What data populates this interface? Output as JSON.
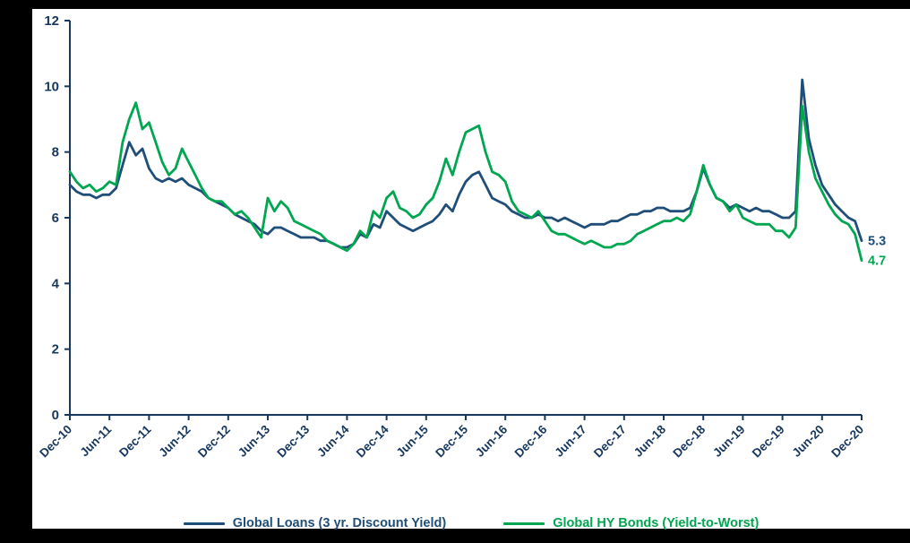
{
  "colors": {
    "background": "#000000",
    "panel": "#FFFFFF",
    "axis": "#17375E",
    "loans_line": "#1F4E79",
    "bonds_line": "#00A650"
  },
  "legend": {
    "items": [
      {
        "label": "Global Loans (3 yr. Discount Yield)",
        "color": "#1F4E79"
      },
      {
        "label": "Global HY Bonds (Yield-to-Worst)",
        "color": "#00A650"
      }
    ]
  },
  "chart_data": {
    "type": "line",
    "title": "",
    "axis_color": "#17375E",
    "ylim": [
      0,
      12
    ],
    "y_ticks": [
      0,
      2,
      4,
      6,
      8,
      10,
      12
    ],
    "months_per_tick": 6,
    "x_tick_labels": [
      "Dec-10",
      "Jun-11",
      "Dec-11",
      "Jun-12",
      "Dec-12",
      "Jun-13",
      "Dec-13",
      "Jun-14",
      "Dec-14",
      "Jun-15",
      "Dec-15",
      "Jun-16",
      "Dec-16",
      "Jun-17",
      "Dec-17",
      "Jun-18",
      "Dec-18",
      "Jun-19",
      "Dec-19",
      "Jun-20",
      "Dec-20"
    ],
    "x_start": "Dec-10",
    "x_end": "Dec-20",
    "series": [
      {
        "name": "Global Loans (3 yr. Discount Yield)",
        "color": "#1F4E79",
        "values": [
          7.0,
          6.8,
          6.7,
          6.7,
          6.6,
          6.7,
          6.7,
          6.9,
          7.6,
          8.3,
          7.9,
          8.1,
          7.5,
          7.2,
          7.1,
          7.2,
          7.1,
          7.2,
          7.0,
          6.9,
          6.8,
          6.6,
          6.5,
          6.4,
          6.3,
          6.1,
          6.0,
          5.9,
          5.8,
          5.6,
          5.5,
          5.7,
          5.7,
          5.6,
          5.5,
          5.4,
          5.4,
          5.4,
          5.3,
          5.3,
          5.2,
          5.1,
          5.1,
          5.2,
          5.5,
          5.4,
          5.8,
          5.7,
          6.2,
          6.0,
          5.8,
          5.7,
          5.6,
          5.7,
          5.8,
          5.9,
          6.1,
          6.4,
          6.2,
          6.7,
          7.1,
          7.3,
          7.4,
          7.0,
          6.6,
          6.5,
          6.4,
          6.2,
          6.1,
          6.0,
          6.0,
          6.1,
          6.0,
          6.0,
          5.9,
          6.0,
          5.9,
          5.8,
          5.7,
          5.8,
          5.8,
          5.8,
          5.9,
          5.9,
          6.0,
          6.1,
          6.1,
          6.2,
          6.2,
          6.3,
          6.3,
          6.2,
          6.2,
          6.2,
          6.3,
          6.8,
          7.5,
          7.0,
          6.6,
          6.5,
          6.3,
          6.4,
          6.3,
          6.2,
          6.3,
          6.2,
          6.2,
          6.1,
          6.0,
          6.0,
          6.2,
          10.2,
          8.4,
          7.6,
          7.0,
          6.7,
          6.4,
          6.2,
          6.0,
          5.9,
          5.3
        ]
      },
      {
        "name": "Global HY Bonds (Yield-to-Worst)",
        "color": "#00A650",
        "values": [
          7.4,
          7.1,
          6.9,
          7.0,
          6.8,
          6.9,
          7.1,
          7.0,
          8.3,
          9.0,
          9.5,
          8.7,
          8.9,
          8.3,
          7.7,
          7.3,
          7.5,
          8.1,
          7.7,
          7.3,
          6.9,
          6.6,
          6.5,
          6.5,
          6.3,
          6.1,
          6.2,
          6.0,
          5.7,
          5.4,
          6.6,
          6.2,
          6.5,
          6.3,
          5.9,
          5.8,
          5.7,
          5.6,
          5.5,
          5.3,
          5.2,
          5.1,
          5.0,
          5.2,
          5.6,
          5.4,
          6.2,
          6.0,
          6.6,
          6.8,
          6.3,
          6.2,
          6.0,
          6.1,
          6.4,
          6.6,
          7.1,
          7.8,
          7.3,
          8.0,
          8.6,
          8.7,
          8.8,
          8.0,
          7.4,
          7.3,
          7.1,
          6.5,
          6.2,
          6.1,
          6.0,
          6.2,
          5.9,
          5.6,
          5.5,
          5.5,
          5.4,
          5.3,
          5.2,
          5.3,
          5.2,
          5.1,
          5.1,
          5.2,
          5.2,
          5.3,
          5.5,
          5.6,
          5.7,
          5.8,
          5.9,
          5.9,
          6.0,
          5.9,
          6.1,
          6.8,
          7.6,
          7.0,
          6.6,
          6.5,
          6.2,
          6.4,
          6.0,
          5.9,
          5.8,
          5.8,
          5.8,
          5.6,
          5.6,
          5.4,
          5.7,
          9.4,
          8.0,
          7.2,
          6.8,
          6.4,
          6.1,
          5.9,
          5.8,
          5.5,
          4.7
        ]
      }
    ],
    "end_labels": [
      {
        "text": "5.3",
        "series": "Global Loans (3 yr. Discount Yield)"
      },
      {
        "text": "4.7",
        "series": "Global HY Bonds (Yield-to-Worst)"
      }
    ]
  }
}
